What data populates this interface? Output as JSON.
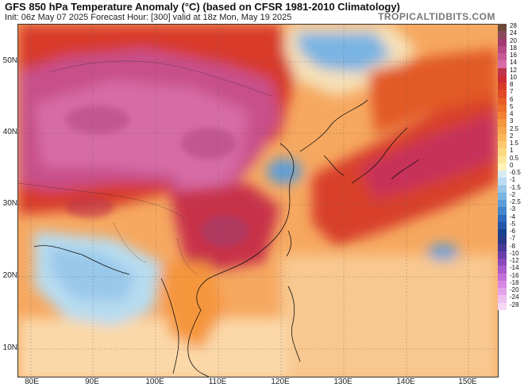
{
  "header": {
    "title": "GFS 850 hPa Temperature Anomaly (°C) (based on CFSR 1981-2010 Climatology)",
    "subtitle": "Init: 06z May 07 2025   Forecast Hour: [300]   valid at 18z Mon, May 19 2025",
    "brand": "TROPICALTIDBITS.COM"
  },
  "axes": {
    "lat_labels": [
      "50N",
      "40N",
      "30N",
      "20N",
      "10N"
    ],
    "lon_labels": [
      "80E",
      "90E",
      "100E",
      "110E",
      "120E",
      "130E",
      "140E",
      "150E"
    ]
  },
  "colorbar": {
    "levels": [
      {
        "label": "28",
        "color": "#6b4a3a"
      },
      {
        "label": "24",
        "color": "#8a4a5a"
      },
      {
        "label": "20",
        "color": "#a03c6e"
      },
      {
        "label": "18",
        "color": "#b54a84"
      },
      {
        "label": "16",
        "color": "#c85a9a"
      },
      {
        "label": "14",
        "color": "#d66ca6"
      },
      {
        "label": "12",
        "color": "#c0344c"
      },
      {
        "label": "10",
        "color": "#cc2c36"
      },
      {
        "label": "8",
        "color": "#d83a2a"
      },
      {
        "label": "7",
        "color": "#e04a26"
      },
      {
        "label": "6",
        "color": "#e85c26"
      },
      {
        "label": "5",
        "color": "#ee6e2a"
      },
      {
        "label": "4",
        "color": "#f28232"
      },
      {
        "label": "3",
        "color": "#f5963e"
      },
      {
        "label": "2.5",
        "color": "#f8a84c"
      },
      {
        "label": "2",
        "color": "#fab85c"
      },
      {
        "label": "1.5",
        "color": "#fcc870"
      },
      {
        "label": "1",
        "color": "#fdd884"
      },
      {
        "label": "0.5",
        "color": "#fee79c"
      },
      {
        "label": "0",
        "color": "#fff2b8"
      },
      {
        "label": "-0.5",
        "color": "#d8ecf4"
      },
      {
        "label": "-1",
        "color": "#b8dcf0"
      },
      {
        "label": "-1.5",
        "color": "#98c8ea"
      },
      {
        "label": "-2",
        "color": "#7ab4e2"
      },
      {
        "label": "-2.5",
        "color": "#5c9ed8"
      },
      {
        "label": "-3",
        "color": "#4486cc"
      },
      {
        "label": "-4",
        "color": "#306cbc"
      },
      {
        "label": "-5",
        "color": "#2254a8"
      },
      {
        "label": "-6",
        "color": "#1a4090"
      },
      {
        "label": "-7",
        "color": "#2a3888"
      },
      {
        "label": "-8",
        "color": "#4a3a98"
      },
      {
        "label": "-10",
        "color": "#6a40aa"
      },
      {
        "label": "-12",
        "color": "#8a4abc"
      },
      {
        "label": "-14",
        "color": "#a85ccc"
      },
      {
        "label": "-16",
        "color": "#c270d8"
      },
      {
        "label": "-18",
        "color": "#d888e2"
      },
      {
        "label": "-20",
        "color": "#e4a4ea"
      },
      {
        "label": "-24",
        "color": "#eec0f0"
      },
      {
        "label": "-28",
        "color": "#f4d8f4"
      }
    ]
  }
}
